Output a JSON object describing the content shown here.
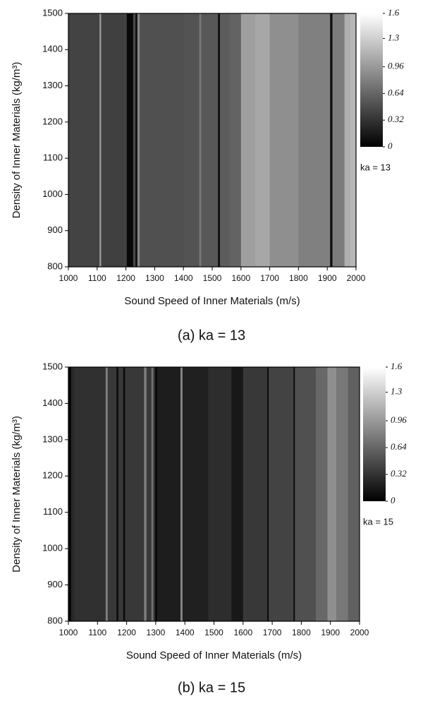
{
  "chart_data": [
    {
      "type": "heatmap",
      "caption": "(a) ka = 13",
      "xlabel": "Sound Speed of Inner Materials (m/s)",
      "ylabel": "Density of Inner Materials (kg/m³)",
      "colorbar_label": "ka = 13",
      "colormap": "gray",
      "x": [
        1000,
        1100,
        1108,
        1114,
        1195,
        1203,
        1225,
        1233,
        1240,
        1248,
        1300,
        1400,
        1455,
        1462,
        1520,
        1527,
        1560,
        1600,
        1650,
        1700,
        1800,
        1910,
        1918,
        1960,
        1980
      ],
      "values": [
        0.42,
        0.4,
        0.95,
        0.4,
        0.42,
        0.05,
        0.45,
        0.1,
        0.85,
        0.5,
        0.5,
        0.52,
        0.75,
        0.55,
        0.1,
        0.58,
        0.62,
        1.0,
        1.05,
        0.9,
        0.8,
        0.08,
        0.78,
        1.1,
        1.15
      ],
      "xlim": [
        1000,
        2000
      ],
      "ylim": [
        800,
        1500
      ],
      "xticks": [
        1000,
        1100,
        1200,
        1300,
        1400,
        1500,
        1600,
        1700,
        1800,
        1900,
        2000
      ],
      "yticks": [
        800,
        900,
        1000,
        1100,
        1200,
        1300,
        1400,
        1500
      ],
      "zlim": [
        0,
        1.6
      ],
      "zticks": [
        0,
        0.32,
        0.64,
        0.96,
        1.3,
        1.6
      ]
    },
    {
      "type": "heatmap",
      "caption": "(b) ka = 15",
      "xlabel": "Sound Speed of Inner Materials (m/s)",
      "ylabel": "Density of Inner Materials (kg/m³)",
      "colorbar_label": "ka = 15",
      "colormap": "gray",
      "x": [
        1000,
        1010,
        1020,
        1128,
        1135,
        1165,
        1172,
        1188,
        1195,
        1260,
        1268,
        1285,
        1292,
        1298,
        1305,
        1385,
        1392,
        1400,
        1480,
        1560,
        1600,
        1683,
        1688,
        1773,
        1778,
        1850,
        1890,
        1920,
        1960
      ],
      "values": [
        0.05,
        0.25,
        0.3,
        0.8,
        0.35,
        0.08,
        0.35,
        0.08,
        0.35,
        0.8,
        0.35,
        0.7,
        0.3,
        0.05,
        0.18,
        0.85,
        0.2,
        0.2,
        0.28,
        0.15,
        0.35,
        0.05,
        0.42,
        0.08,
        0.5,
        0.65,
        0.9,
        0.75,
        0.6
      ],
      "xlim": [
        1000,
        2000
      ],
      "ylim": [
        800,
        1500
      ],
      "xticks": [
        1000,
        1100,
        1200,
        1300,
        1400,
        1500,
        1600,
        1700,
        1800,
        1900,
        2000
      ],
      "yticks": [
        800,
        900,
        1000,
        1100,
        1200,
        1300,
        1400,
        1500
      ],
      "zlim": [
        0,
        1.6
      ],
      "zticks": [
        0,
        0.32,
        0.64,
        0.96,
        1.3,
        1.6
      ]
    }
  ]
}
